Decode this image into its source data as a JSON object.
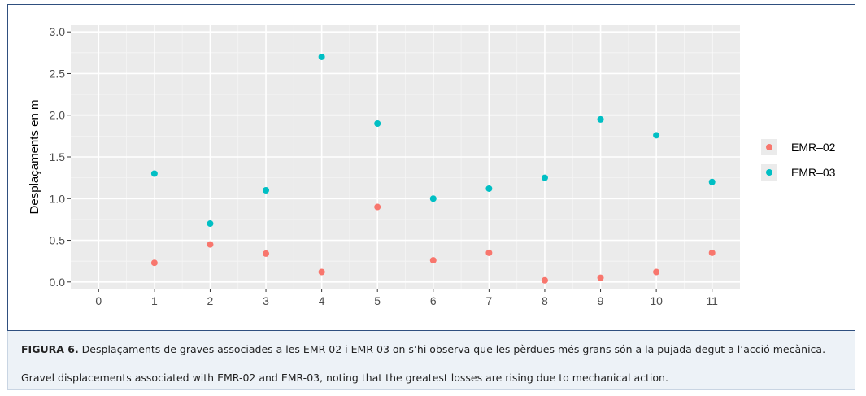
{
  "chart_data": {
    "type": "scatter",
    "title": "",
    "xlabel": "",
    "ylabel": "Desplaçaments en m",
    "xlim": [
      -0.5,
      11.5
    ],
    "ylim": [
      -0.08,
      3.08
    ],
    "x_ticks": [
      "0",
      "1",
      "2",
      "3",
      "4",
      "5",
      "6",
      "7",
      "8",
      "9",
      "10",
      "11"
    ],
    "y_ticks": [
      "0.0",
      "0.5",
      "1.0",
      "1.5",
      "2.0",
      "2.5",
      "3.0"
    ],
    "grid": true,
    "legend_position": "right",
    "series": [
      {
        "name": "EMR–02",
        "color": "#F8766D",
        "points": [
          [
            1,
            0.23
          ],
          [
            2,
            0.45
          ],
          [
            3,
            0.34
          ],
          [
            4,
            0.12
          ],
          [
            5,
            0.9
          ],
          [
            6,
            0.26
          ],
          [
            7,
            0.35
          ],
          [
            8,
            0.02
          ],
          [
            9,
            0.05
          ],
          [
            10,
            0.12
          ],
          [
            11,
            0.35
          ]
        ]
      },
      {
        "name": "EMR–03",
        "color": "#00BFC4",
        "points": [
          [
            1,
            1.3
          ],
          [
            2,
            0.7
          ],
          [
            3,
            1.1
          ],
          [
            4,
            2.7
          ],
          [
            5,
            1.9
          ],
          [
            6,
            1.0
          ],
          [
            7,
            1.12
          ],
          [
            8,
            1.25
          ],
          [
            9,
            1.95
          ],
          [
            10,
            1.76
          ],
          [
            11,
            1.2
          ]
        ]
      }
    ]
  },
  "caption": {
    "figure_label": "FIGURA 6.",
    "catalan": " Desplaçaments de graves associades a les EMR-02 i EMR-03 on s’hi observa que les pèrdues més grans són a la pujada degut a l’acció mecànica.",
    "english": "Gravel displacements associated with EMR-02 and EMR-03, noting that the greatest losses are rising due to mechanical action."
  }
}
